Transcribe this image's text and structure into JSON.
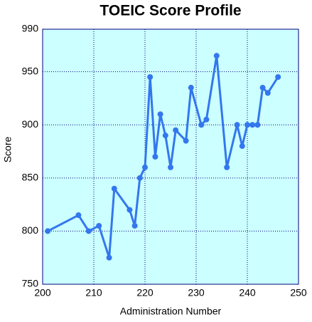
{
  "chart_data": {
    "type": "line",
    "title": "TOEIC Score Profile",
    "x_label": "Administration Number",
    "y_label": "Score",
    "series": [
      {
        "name": "Score",
        "color": "#3377ee",
        "x": [
          201,
          207,
          209,
          211,
          213,
          214,
          217,
          218,
          219,
          220,
          221,
          222,
          223,
          224,
          225,
          226,
          228,
          229,
          231,
          232,
          234,
          236,
          238,
          239,
          240,
          241,
          242,
          243,
          244,
          246
        ],
        "values": [
          800,
          815,
          800,
          805,
          775,
          840,
          820,
          805,
          850,
          860,
          945,
          870,
          910,
          890,
          860,
          895,
          885,
          935,
          900,
          905,
          965,
          860,
          900,
          880,
          900,
          900,
          900,
          935,
          930,
          945
        ]
      }
    ],
    "xlim": [
      200,
      250
    ],
    "xticks": [
      200,
      210,
      220,
      230,
      240,
      250
    ],
    "ylim": [
      750,
      990
    ],
    "yticks": [
      750,
      800,
      850,
      900,
      950,
      990
    ],
    "grid": true,
    "background": "#ccffff",
    "frame_color": "#000080"
  }
}
